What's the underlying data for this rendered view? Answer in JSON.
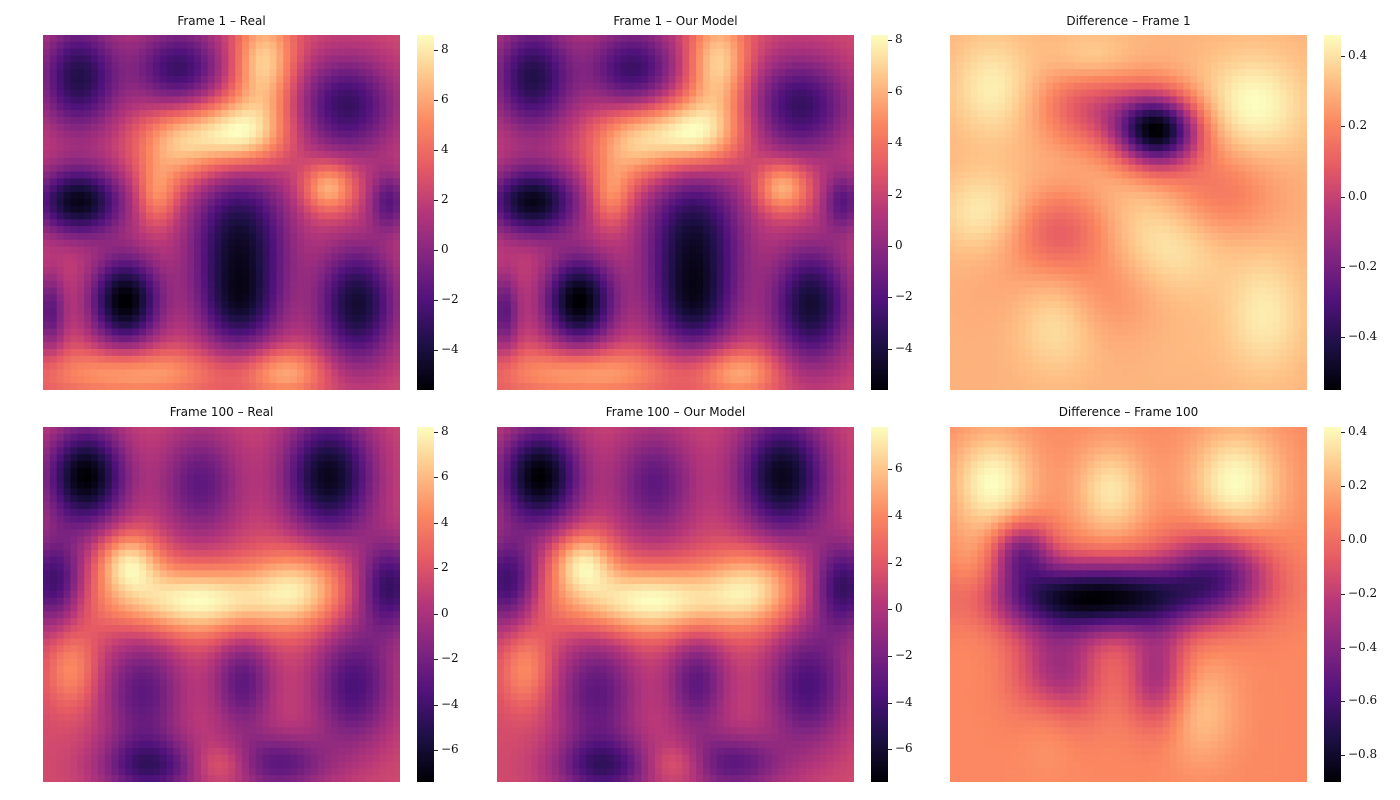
{
  "colormap": {
    "name": "magma",
    "stops": [
      "#000004",
      "#1c1044",
      "#4f127b",
      "#812581",
      "#b5367a",
      "#e55964",
      "#fb8761",
      "#fec287",
      "#fcfdbf"
    ]
  },
  "chart_data": [
    {
      "type": "heatmap",
      "title": "Frame 1 – Real",
      "colorbar": {
        "range": [
          -5.6,
          8.6
        ],
        "ticks": [
          -4,
          -2,
          0,
          2,
          4,
          6,
          8
        ],
        "tick_labels": [
          "−4",
          "−2",
          "0",
          "2",
          "4",
          "6",
          "8"
        ]
      },
      "blobs": [
        [
          0.1,
          0.12,
          0.08,
          0.11,
          -9
        ],
        [
          0.38,
          0.1,
          0.09,
          0.09,
          -8
        ],
        [
          0.62,
          0.08,
          0.06,
          0.1,
          7
        ],
        [
          0.85,
          0.2,
          0.1,
          0.1,
          -8
        ],
        [
          0.55,
          0.28,
          0.09,
          0.07,
          9
        ],
        [
          0.38,
          0.3,
          0.08,
          0.08,
          6
        ],
        [
          0.1,
          0.47,
          0.09,
          0.07,
          -11
        ],
        [
          0.32,
          0.45,
          0.04,
          0.06,
          4
        ],
        [
          0.8,
          0.43,
          0.05,
          0.05,
          6
        ],
        [
          0.55,
          0.58,
          0.1,
          0.15,
          -10
        ],
        [
          0.55,
          0.78,
          0.08,
          0.09,
          -6
        ],
        [
          0.23,
          0.75,
          0.07,
          0.09,
          -12
        ],
        [
          0.88,
          0.76,
          0.08,
          0.12,
          -10
        ],
        [
          0.25,
          0.95,
          0.18,
          0.05,
          5
        ],
        [
          0.68,
          0.95,
          0.08,
          0.05,
          5
        ],
        [
          0.97,
          0.47,
          0.04,
          0.06,
          -6
        ],
        [
          0.02,
          0.78,
          0.03,
          0.08,
          -6
        ]
      ]
    },
    {
      "type": "heatmap",
      "title": "Frame 1 – Our Model",
      "colorbar": {
        "range": [
          -5.6,
          8.2
        ],
        "ticks": [
          -4,
          -2,
          0,
          2,
          4,
          6,
          8
        ],
        "tick_labels": [
          "−4",
          "−2",
          "0",
          "2",
          "4",
          "6",
          "8"
        ]
      },
      "blobs": [
        [
          0.1,
          0.12,
          0.08,
          0.11,
          -9
        ],
        [
          0.38,
          0.1,
          0.09,
          0.09,
          -8
        ],
        [
          0.62,
          0.08,
          0.06,
          0.1,
          7
        ],
        [
          0.85,
          0.2,
          0.1,
          0.1,
          -8
        ],
        [
          0.55,
          0.28,
          0.09,
          0.07,
          9
        ],
        [
          0.38,
          0.3,
          0.08,
          0.08,
          6
        ],
        [
          0.1,
          0.47,
          0.09,
          0.07,
          -11
        ],
        [
          0.32,
          0.45,
          0.04,
          0.06,
          4
        ],
        [
          0.8,
          0.43,
          0.05,
          0.05,
          6
        ],
        [
          0.55,
          0.58,
          0.1,
          0.15,
          -10
        ],
        [
          0.55,
          0.78,
          0.08,
          0.09,
          -6
        ],
        [
          0.23,
          0.75,
          0.07,
          0.09,
          -12
        ],
        [
          0.88,
          0.76,
          0.08,
          0.12,
          -10
        ],
        [
          0.25,
          0.95,
          0.18,
          0.05,
          5
        ],
        [
          0.68,
          0.95,
          0.08,
          0.05,
          5
        ],
        [
          0.97,
          0.47,
          0.04,
          0.06,
          -6
        ],
        [
          0.02,
          0.78,
          0.03,
          0.08,
          -6
        ]
      ]
    },
    {
      "type": "heatmap",
      "title": "Difference – Frame 1",
      "colorbar": {
        "range": [
          -0.55,
          0.46
        ],
        "ticks": [
          -0.4,
          -0.2,
          0.0,
          0.2,
          0.4
        ],
        "tick_labels": [
          "−0.4",
          "−0.2",
          "0.0",
          "0.2",
          "0.4"
        ]
      },
      "blobs": [
        [
          0.58,
          0.27,
          0.08,
          0.07,
          -0.5
        ],
        [
          0.4,
          0.2,
          0.1,
          0.08,
          -0.15
        ],
        [
          0.72,
          0.45,
          0.12,
          0.1,
          -0.12
        ],
        [
          0.3,
          0.55,
          0.1,
          0.08,
          -0.12
        ],
        [
          0.5,
          0.72,
          0.2,
          0.1,
          -0.08
        ],
        [
          0.12,
          0.15,
          0.08,
          0.1,
          0.08
        ],
        [
          0.85,
          0.2,
          0.1,
          0.1,
          0.1
        ],
        [
          0.1,
          0.5,
          0.09,
          0.08,
          0.08
        ],
        [
          0.62,
          0.6,
          0.12,
          0.16,
          0.12
        ],
        [
          0.3,
          0.8,
          0.08,
          0.1,
          0.08
        ],
        [
          0.88,
          0.78,
          0.08,
          0.12,
          0.08
        ],
        [
          0.4,
          0.08,
          0.08,
          0.06,
          0.06
        ]
      ]
    },
    {
      "type": "heatmap",
      "title": "Frame 100 – Real",
      "colorbar": {
        "range": [
          -7.4,
          8.2
        ],
        "ticks": [
          -6,
          -4,
          -2,
          0,
          2,
          4,
          6,
          8
        ],
        "tick_labels": [
          "−6",
          "−4",
          "−2",
          "0",
          "2",
          "4",
          "6",
          "8"
        ]
      },
      "blobs": [
        [
          0.12,
          0.14,
          0.08,
          0.1,
          -12
        ],
        [
          0.44,
          0.16,
          0.08,
          0.11,
          -6
        ],
        [
          0.8,
          0.14,
          0.09,
          0.12,
          -11
        ],
        [
          0.03,
          0.44,
          0.06,
          0.09,
          -8
        ],
        [
          0.97,
          0.45,
          0.06,
          0.09,
          -8
        ],
        [
          0.43,
          0.49,
          0.18,
          0.07,
          9
        ],
        [
          0.24,
          0.38,
          0.06,
          0.06,
          7
        ],
        [
          0.72,
          0.45,
          0.09,
          0.08,
          6
        ],
        [
          0.28,
          0.75,
          0.08,
          0.12,
          -6
        ],
        [
          0.56,
          0.72,
          0.06,
          0.1,
          -6
        ],
        [
          0.87,
          0.73,
          0.08,
          0.12,
          -7
        ],
        [
          0.3,
          0.96,
          0.1,
          0.06,
          -7
        ],
        [
          0.66,
          0.95,
          0.1,
          0.06,
          -6
        ],
        [
          0.08,
          0.68,
          0.05,
          0.08,
          4
        ],
        [
          0.5,
          0.95,
          0.06,
          0.04,
          3
        ]
      ]
    },
    {
      "type": "heatmap",
      "title": "Frame 100 – Our Model",
      "colorbar": {
        "range": [
          -7.4,
          7.8
        ],
        "ticks": [
          -6,
          -4,
          -2,
          0,
          2,
          4,
          6
        ],
        "tick_labels": [
          "−6",
          "−4",
          "−2",
          "0",
          "2",
          "4",
          "6"
        ]
      },
      "blobs": [
        [
          0.12,
          0.14,
          0.08,
          0.1,
          -12
        ],
        [
          0.44,
          0.16,
          0.08,
          0.11,
          -6
        ],
        [
          0.8,
          0.14,
          0.09,
          0.12,
          -11
        ],
        [
          0.03,
          0.44,
          0.06,
          0.09,
          -8
        ],
        [
          0.97,
          0.45,
          0.06,
          0.09,
          -8
        ],
        [
          0.43,
          0.49,
          0.18,
          0.07,
          9
        ],
        [
          0.24,
          0.38,
          0.06,
          0.06,
          7
        ],
        [
          0.72,
          0.45,
          0.09,
          0.08,
          6
        ],
        [
          0.28,
          0.75,
          0.08,
          0.12,
          -6
        ],
        [
          0.56,
          0.72,
          0.06,
          0.1,
          -6
        ],
        [
          0.87,
          0.73,
          0.08,
          0.12,
          -7
        ],
        [
          0.3,
          0.96,
          0.1,
          0.06,
          -7
        ],
        [
          0.66,
          0.95,
          0.1,
          0.06,
          -6
        ],
        [
          0.08,
          0.68,
          0.05,
          0.08,
          4
        ],
        [
          0.5,
          0.95,
          0.06,
          0.04,
          3
        ]
      ]
    },
    {
      "type": "heatmap",
      "title": "Difference – Frame 100",
      "colorbar": {
        "range": [
          -0.9,
          0.42
        ],
        "ticks": [
          -0.8,
          -0.6,
          -0.4,
          -0.2,
          0.0,
          0.2,
          0.4
        ],
        "tick_labels": [
          "−0.8",
          "−0.6",
          "−0.4",
          "−0.2",
          "0.0",
          "0.2",
          "0.4"
        ]
      },
      "blobs": [
        [
          0.42,
          0.48,
          0.22,
          0.07,
          -0.3
        ],
        [
          0.2,
          0.35,
          0.06,
          0.06,
          -0.15
        ],
        [
          0.75,
          0.4,
          0.1,
          0.08,
          -0.15
        ],
        [
          0.3,
          0.7,
          0.08,
          0.1,
          -0.15
        ],
        [
          0.58,
          0.7,
          0.06,
          0.1,
          -0.12
        ],
        [
          0.12,
          0.16,
          0.08,
          0.1,
          0.1
        ],
        [
          0.45,
          0.18,
          0.07,
          0.09,
          0.08
        ],
        [
          0.8,
          0.16,
          0.09,
          0.11,
          0.1
        ],
        [
          0.08,
          0.45,
          0.06,
          0.09,
          0.05
        ],
        [
          0.28,
          0.78,
          0.06,
          0.1,
          0.05
        ],
        [
          0.7,
          0.8,
          0.07,
          0.1,
          0.05
        ]
      ]
    }
  ]
}
